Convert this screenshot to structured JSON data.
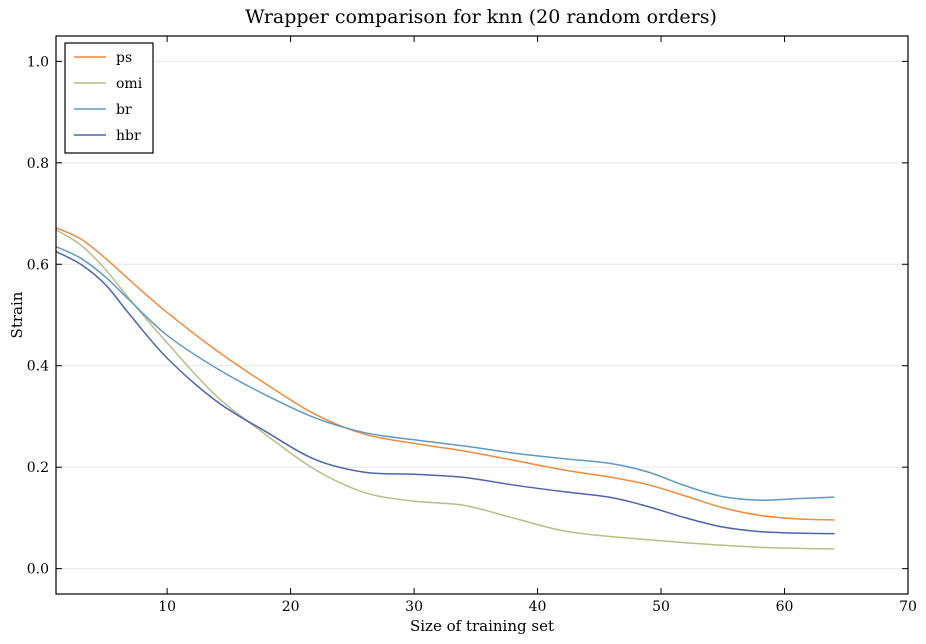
{
  "chart_data": {
    "type": "line",
    "title": "Wrapper comparison for knn (20 random orders)",
    "xlabel": "Size of training set",
    "ylabel": "Strain",
    "xlim": [
      1,
      70
    ],
    "ylim": [
      -0.05,
      1.05
    ],
    "x_ticks": [
      10,
      20,
      30,
      40,
      50,
      60,
      70
    ],
    "y_ticks": [
      0.0,
      0.2,
      0.4,
      0.6,
      0.8,
      1.0
    ],
    "x_tick_labels": [
      "10",
      "20",
      "30",
      "40",
      "50",
      "60",
      "70"
    ],
    "y_tick_labels": [
      "0.0",
      "0.2",
      "0.4",
      "0.6",
      "0.8",
      "1.0"
    ],
    "grid": "horizontal",
    "legend_position": "top-left",
    "x": [
      1,
      3,
      5,
      7,
      10,
      14,
      18,
      22,
      26,
      30,
      34,
      38,
      42,
      46,
      49,
      52,
      55,
      58,
      61,
      64
    ],
    "series": [
      {
        "name": "ps",
        "color": "#f08a3c",
        "values": [
          0.672,
          0.65,
          0.612,
          0.568,
          0.505,
          0.43,
          0.364,
          0.304,
          0.265,
          0.247,
          0.232,
          0.214,
          0.195,
          0.18,
          0.165,
          0.143,
          0.12,
          0.105,
          0.098,
          0.096
        ]
      },
      {
        "name": "omi",
        "color": "#b8be86",
        "values": [
          0.668,
          0.638,
          0.59,
          0.53,
          0.445,
          0.34,
          0.264,
          0.195,
          0.15,
          0.133,
          0.125,
          0.1,
          0.075,
          0.063,
          0.057,
          0.051,
          0.046,
          0.042,
          0.04,
          0.039
        ]
      },
      {
        "name": "br",
        "color": "#5e9ac2",
        "values": [
          0.635,
          0.612,
          0.575,
          0.528,
          0.46,
          0.395,
          0.342,
          0.297,
          0.268,
          0.254,
          0.242,
          0.228,
          0.217,
          0.207,
          0.19,
          0.163,
          0.142,
          0.135,
          0.138,
          0.141
        ]
      },
      {
        "name": "hbr",
        "color": "#4c63b0",
        "values": [
          0.625,
          0.6,
          0.56,
          0.5,
          0.415,
          0.33,
          0.27,
          0.215,
          0.19,
          0.186,
          0.18,
          0.165,
          0.152,
          0.14,
          0.122,
          0.1,
          0.082,
          0.073,
          0.07,
          0.069
        ]
      }
    ]
  }
}
